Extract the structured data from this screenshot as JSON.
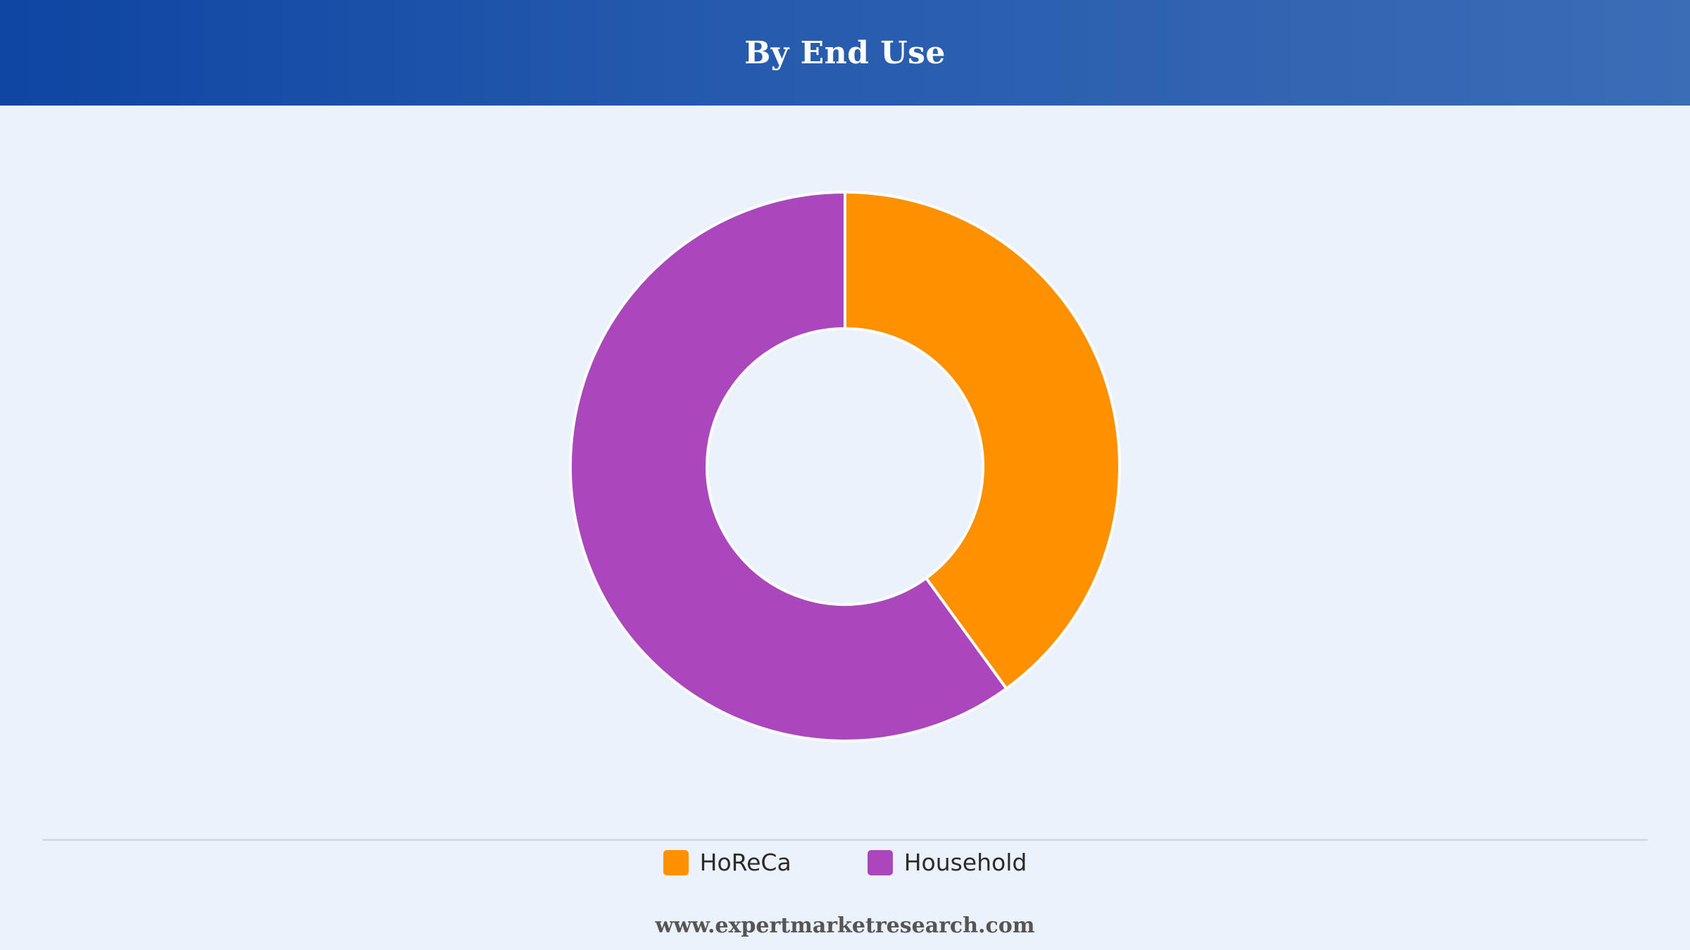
{
  "header": {
    "title": "By End Use"
  },
  "chart_data": {
    "type": "pie",
    "variant": "donut",
    "title": "By End Use",
    "categories": [
      "HoReCa",
      "Household"
    ],
    "values": [
      40,
      60
    ],
    "unit": "%",
    "colors": [
      "#ff9100",
      "#aa47bc"
    ],
    "start_angle_deg": 0,
    "direction": "clockwise",
    "legend_position": "bottom"
  },
  "legend": {
    "items": [
      {
        "label": "HoReCa",
        "color": "#ff9100"
      },
      {
        "label": "Household",
        "color": "#aa47bc"
      }
    ]
  },
  "footer": {
    "text": "www.expertmarketresearch.com"
  }
}
